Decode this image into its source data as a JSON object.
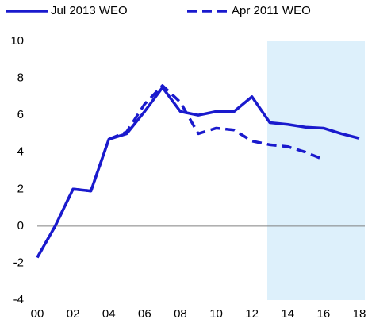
{
  "chart_data": {
    "type": "line",
    "categories": [
      "00",
      null,
      "02",
      null,
      "04",
      null,
      "06",
      null,
      "08",
      null,
      "10",
      null,
      "12",
      null,
      "14",
      null,
      "16",
      null,
      "18"
    ],
    "series": [
      {
        "name": "Jul 2013 WEO",
        "color": "#1a1acd",
        "dash": false,
        "values": [
          -1.7,
          0,
          2.0,
          1.9,
          4.7,
          5.0,
          6.2,
          7.5,
          6.2,
          6.0,
          6.2,
          6.2,
          7.0,
          5.6,
          5.5,
          5.35,
          5.3,
          5.0,
          4.75
        ]
      },
      {
        "name": "Apr 2011 WEO",
        "color": "#1a1acd",
        "dash": true,
        "values": [
          -1.7,
          0,
          2.0,
          1.9,
          4.7,
          5.1,
          6.6,
          7.6,
          6.7,
          5.0,
          5.3,
          5.2,
          4.6,
          4.4,
          4.3,
          4.0,
          3.6,
          null,
          null
        ]
      }
    ],
    "ylim": [
      -4,
      10
    ],
    "yticks": [
      -4,
      -2,
      0,
      2,
      4,
      6,
      8,
      10
    ]
  }
}
